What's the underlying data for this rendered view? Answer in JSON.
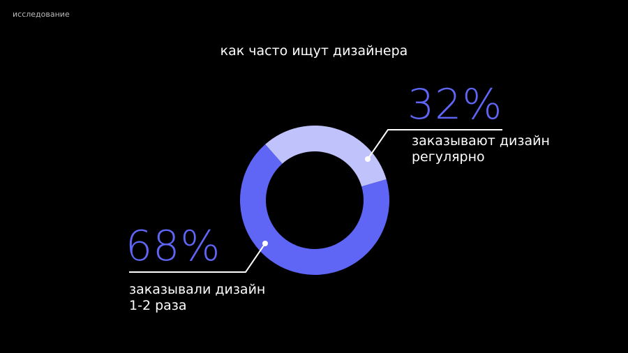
{
  "section": "исследование",
  "chart_data": {
    "type": "pie",
    "title": "как часто ищут дизайнера",
    "categories": [
      "заказывают дизайн регулярно",
      "заказывали дизайн 1-2 раза"
    ],
    "values": [
      32,
      68
    ],
    "value_labels": [
      "32%",
      "68%"
    ],
    "colors": [
      "#c0c3fb",
      "#5f66f6"
    ]
  }
}
